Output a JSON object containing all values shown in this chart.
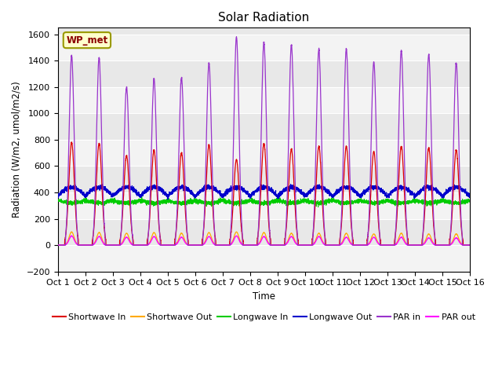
{
  "title": "Solar Radiation",
  "xlabel": "Time",
  "ylabel": "Radiation (W/m2, umol/m2/s)",
  "ylim": [
    -200,
    1650
  ],
  "xlim": [
    0,
    15
  ],
  "xtick_labels": [
    "Oct 1",
    "Oct 2",
    "Oct 3",
    "Oct 4",
    "Oct 5",
    "Oct 6",
    "Oct 7",
    "Oct 8",
    "Oct 9",
    "Oct 10",
    "Oct 11",
    "Oct 12",
    "Oct 13",
    "Oct 14",
    "Oct 15",
    "Oct 16"
  ],
  "legend_label": "WP_met",
  "series": {
    "shortwave_in": {
      "color": "#dd0000",
      "label": "Shortwave In"
    },
    "shortwave_out": {
      "color": "#ffaa00",
      "label": "Shortwave Out"
    },
    "longwave_in": {
      "color": "#00cc00",
      "label": "Longwave In"
    },
    "longwave_out": {
      "color": "#0000cc",
      "label": "Longwave Out"
    },
    "par_in": {
      "color": "#9933cc",
      "label": "PAR in"
    },
    "par_out": {
      "color": "#ff00ff",
      "label": "PAR out"
    }
  },
  "background_color": "#e8e8e8",
  "grid_color": "#ffffff",
  "sw_in_peaks": [
    780,
    770,
    680,
    720,
    700,
    760,
    650,
    770,
    730,
    750,
    750,
    710,
    750,
    740,
    720
  ],
  "par_in_peaks": [
    1440,
    1420,
    1200,
    1260,
    1270,
    1380,
    1580,
    1540,
    1520,
    1490,
    1490,
    1390,
    1480,
    1450,
    1380
  ],
  "par_out_peaks": [
    70,
    65,
    60,
    65,
    60,
    65,
    70,
    65,
    65,
    65,
    60,
    60,
    60,
    55,
    55
  ],
  "sw_out_peaks": [
    100,
    95,
    90,
    95,
    90,
    95,
    100,
    95,
    90,
    90,
    90,
    85,
    90,
    85,
    85
  ],
  "lw_in_base": 340,
  "lw_out_base": 370
}
